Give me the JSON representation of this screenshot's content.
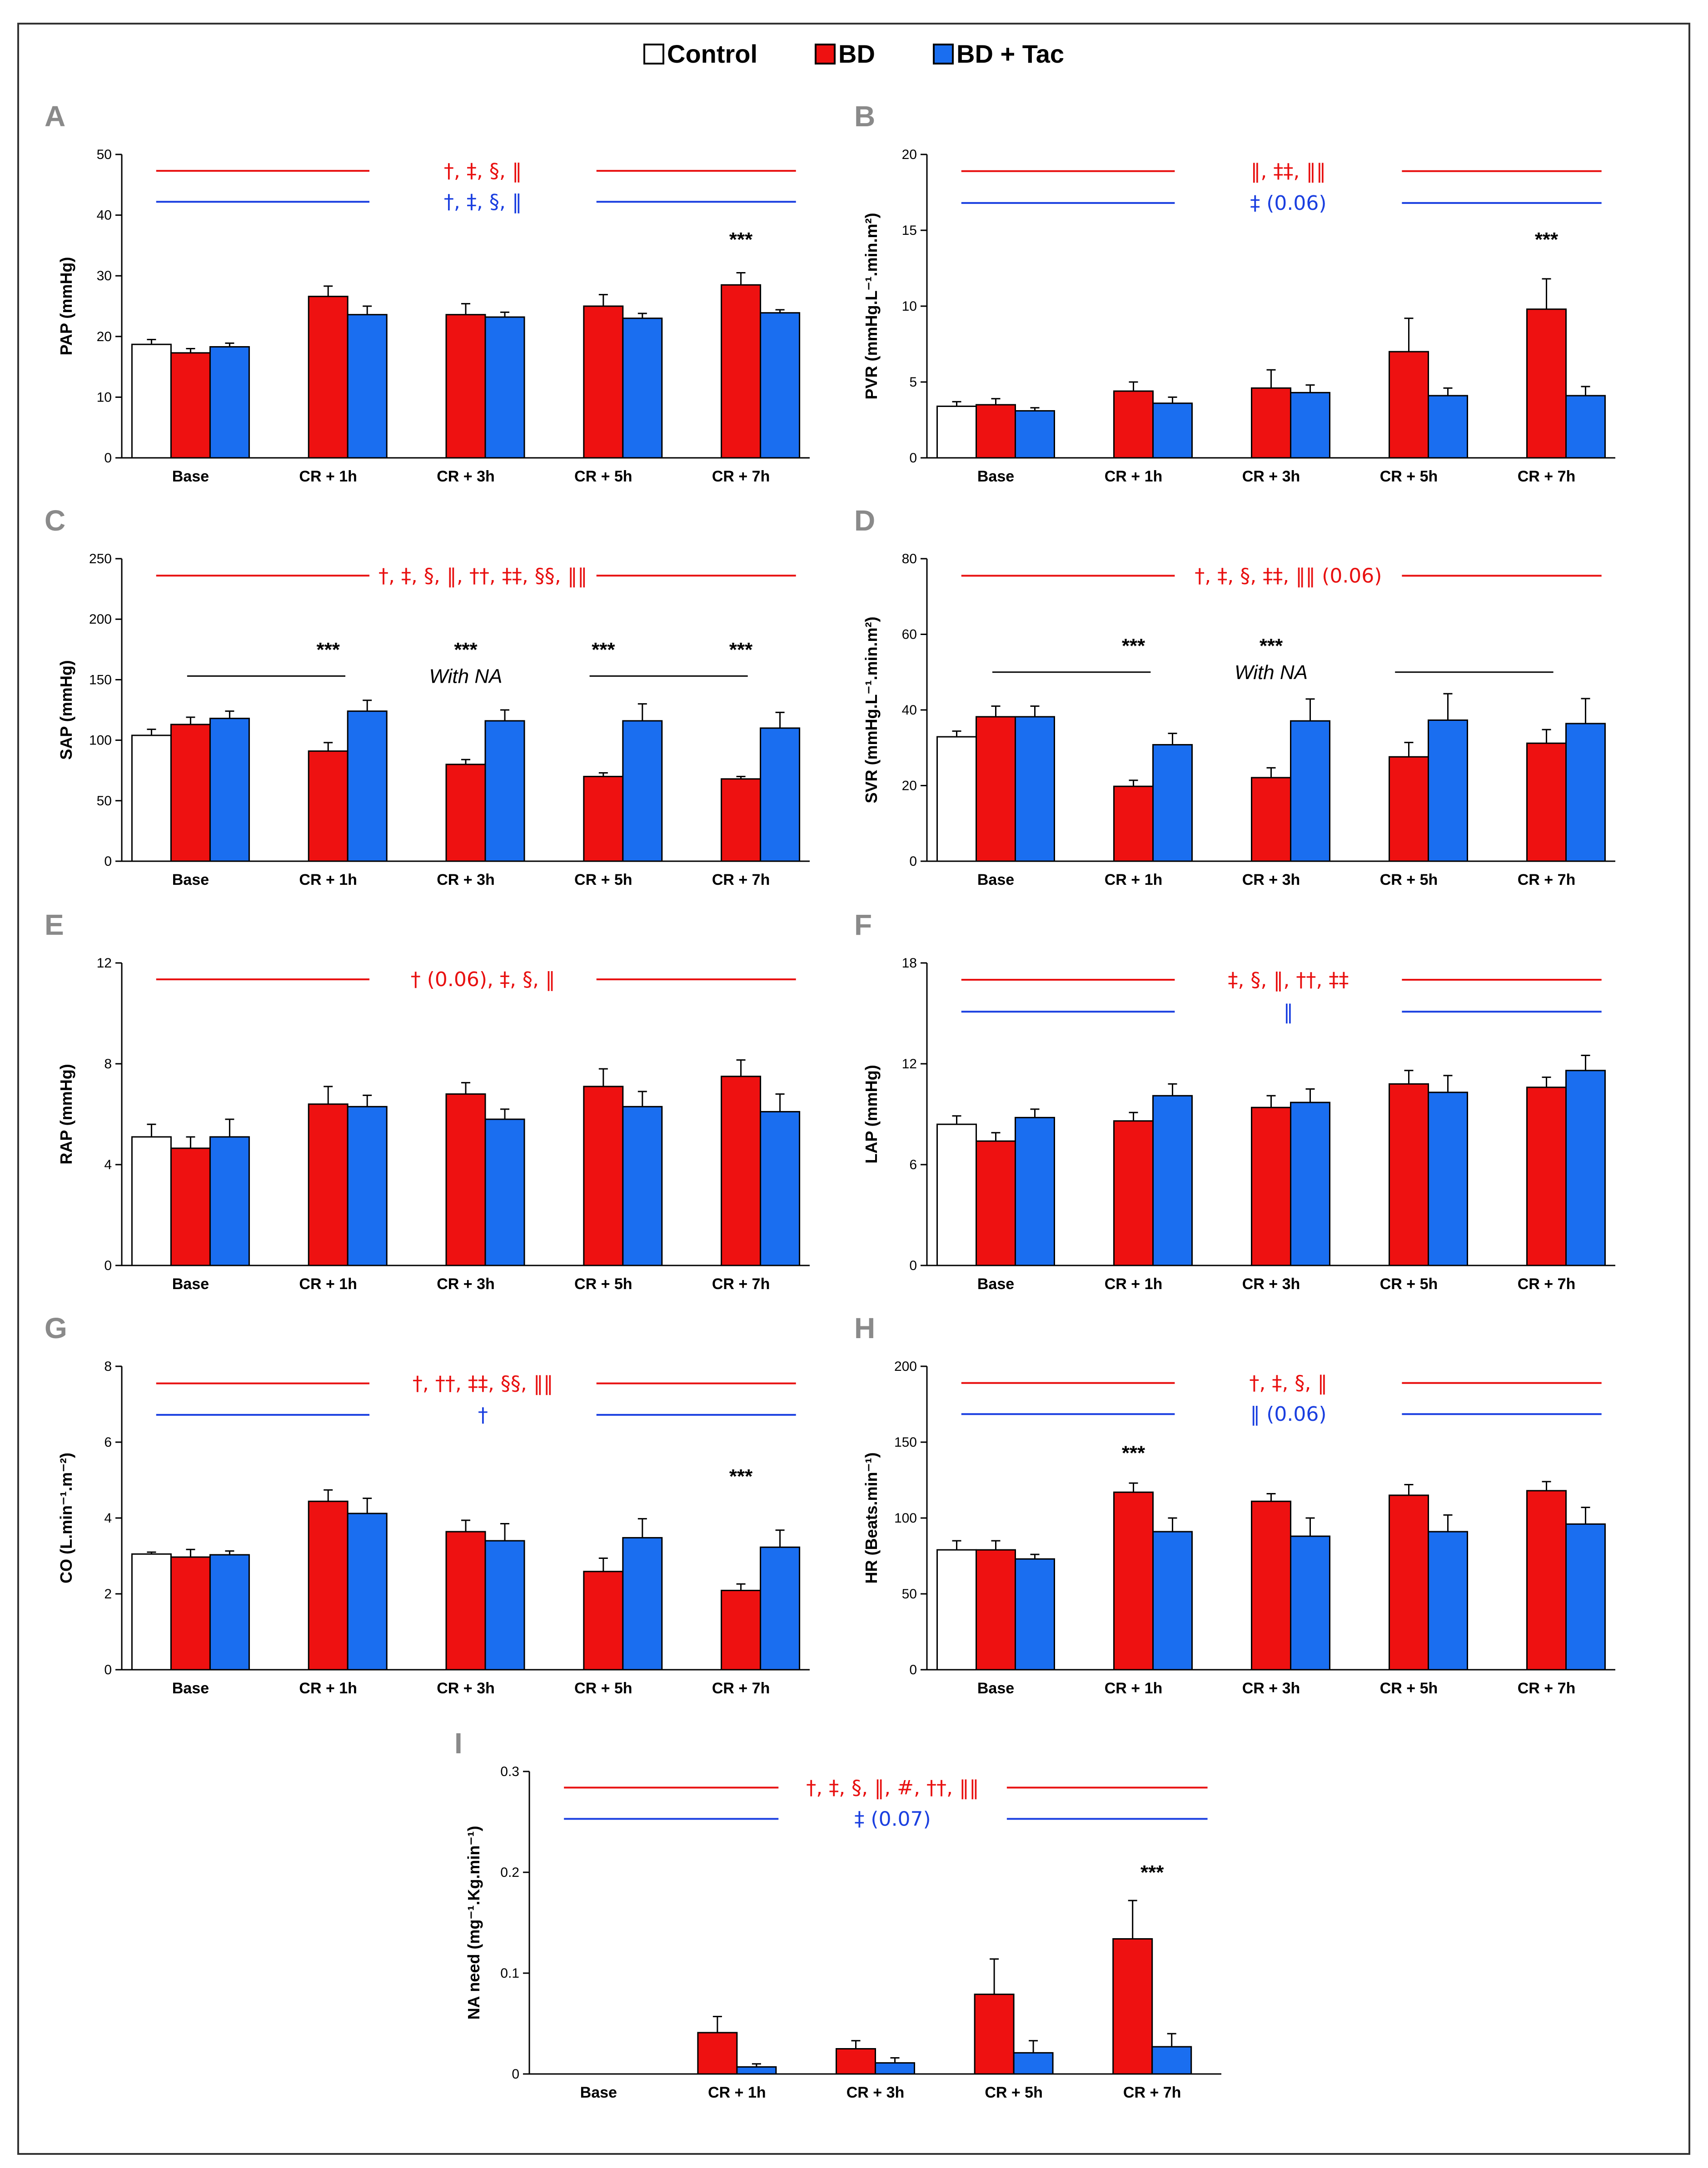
{
  "colors": {
    "control": "#ffffff",
    "bd": "#ee1111",
    "bdtac": "#1a6ef0",
    "sig_red": "#e81010",
    "sig_blue": "#1a3fe0"
  },
  "legend": [
    {
      "label": "Control",
      "key": "control"
    },
    {
      "label": "BD",
      "key": "bd"
    },
    {
      "label": "BD + Tac",
      "key": "bdtac"
    }
  ],
  "chart_data": [
    {
      "panel": "A",
      "type": "bar",
      "ylabel": "PAP (mmHg)",
      "ylim": [
        0,
        50
      ],
      "yticks": [
        0,
        10,
        20,
        30,
        40,
        50
      ],
      "categories": [
        "Base",
        "CR + 1h",
        "CR + 3h",
        "CR + 5h",
        "CR + 7h"
      ],
      "series": [
        {
          "name": "Control",
          "values": [
            18.7,
            null,
            null,
            null,
            null
          ],
          "errors": [
            0.8,
            null,
            null,
            null,
            null
          ]
        },
        {
          "name": "BD",
          "values": [
            17.3,
            26.6,
            23.6,
            25.0,
            28.5
          ],
          "errors": [
            0.7,
            1.7,
            1.8,
            1.9,
            2.0
          ]
        },
        {
          "name": "BD + Tac",
          "values": [
            18.3,
            23.6,
            23.2,
            23.0,
            23.9
          ],
          "errors": [
            0.6,
            1.4,
            0.8,
            0.8,
            0.5
          ]
        }
      ],
      "significance": [
        {
          "text": "†, ‡, §, ‖",
          "color": "red",
          "y": 47.3
        },
        {
          "text": "†, ‡, §, ‖",
          "color": "blue",
          "y": 42.2
        }
      ],
      "stars": [
        {
          "text": "***",
          "category": 4,
          "y": 36
        }
      ]
    },
    {
      "panel": "B",
      "type": "bar",
      "ylabel": "PVR  (mmHg.L⁻¹.min.m²)",
      "ylim": [
        0,
        20
      ],
      "yticks": [
        0,
        5,
        10,
        15,
        20
      ],
      "categories": [
        "Base",
        "CR + 1h",
        "CR + 3h",
        "CR + 5h",
        "CR + 7h"
      ],
      "series": [
        {
          "name": "Control",
          "values": [
            3.4,
            null,
            null,
            null,
            null
          ],
          "errors": [
            0.3,
            null,
            null,
            null,
            null
          ]
        },
        {
          "name": "BD",
          "values": [
            3.5,
            4.4,
            4.6,
            7.0,
            9.8
          ],
          "errors": [
            0.4,
            0.6,
            1.2,
            2.2,
            2.0
          ]
        },
        {
          "name": "BD + Tac",
          "values": [
            3.1,
            3.6,
            4.3,
            4.1,
            4.1
          ],
          "errors": [
            0.2,
            0.4,
            0.5,
            0.5,
            0.6
          ]
        }
      ],
      "significance": [
        {
          "text": "‖, ‡‡, ‖‖",
          "color": "red",
          "y": 18.9
        },
        {
          "text": "‡ (0.06)",
          "color": "blue",
          "y": 16.8
        }
      ],
      "stars": [
        {
          "text": "***",
          "category": 4,
          "y": 14.4
        }
      ]
    },
    {
      "panel": "C",
      "type": "bar",
      "ylabel": "SAP (mmHg)",
      "ylim": [
        0,
        250
      ],
      "yticks": [
        0,
        50,
        100,
        150,
        200,
        250
      ],
      "categories": [
        "Base",
        "CR + 1h",
        "CR + 3h",
        "CR + 5h",
        "CR + 7h"
      ],
      "series": [
        {
          "name": "Control",
          "values": [
            104,
            null,
            null,
            null,
            null
          ],
          "errors": [
            5,
            null,
            null,
            null,
            null
          ]
        },
        {
          "name": "BD",
          "values": [
            113,
            91,
            80,
            70,
            68
          ],
          "errors": [
            6,
            7,
            4,
            3,
            2
          ]
        },
        {
          "name": "BD + Tac",
          "values": [
            118,
            124,
            116,
            116,
            110
          ],
          "errors": [
            6,
            9,
            9,
            14,
            13
          ]
        }
      ],
      "significance": [
        {
          "text": "†, ‡, §, ‖, ††, ‡‡, §§, ‖‖",
          "color": "red",
          "y": 236
        }
      ],
      "stars": [
        {
          "text": "***",
          "category": 1,
          "y": 175
        },
        {
          "text": "***",
          "category": 2,
          "y": 175
        },
        {
          "text": "***",
          "category": 3,
          "y": 175
        },
        {
          "text": "***",
          "category": 4,
          "y": 175
        }
      ],
      "with_na": {
        "text": "With NA",
        "y": 153
      }
    },
    {
      "panel": "D",
      "type": "bar",
      "ylabel": "SVR  (mmHg.L⁻¹.min.m²)",
      "ylim": [
        0,
        80
      ],
      "yticks": [
        0,
        20,
        40,
        60,
        80
      ],
      "categories": [
        "Base",
        "CR + 1h",
        "CR + 3h",
        "CR + 5h",
        "CR + 7h"
      ],
      "series": [
        {
          "name": "Control",
          "values": [
            32.9,
            null,
            null,
            null,
            null
          ],
          "errors": [
            1.5,
            null,
            null,
            null,
            null
          ]
        },
        {
          "name": "BD",
          "values": [
            38.2,
            19.8,
            22.1,
            27.6,
            31.2
          ],
          "errors": [
            2.8,
            1.6,
            2.6,
            3.8,
            3.6
          ]
        },
        {
          "name": "BD + Tac",
          "values": [
            38.2,
            30.8,
            37.1,
            37.3,
            36.4
          ],
          "errors": [
            2.8,
            3.0,
            5.8,
            7.0,
            6.6
          ]
        }
      ],
      "significance": [
        {
          "text": "†, ‡, §, ‡‡, ‖‖ (0.06)",
          "color": "red",
          "y": 75.5
        }
      ],
      "stars": [
        {
          "text": "***",
          "category": 1,
          "y": 57
        },
        {
          "text": "***",
          "category": 2,
          "y": 57
        }
      ],
      "with_na": {
        "text": "With NA",
        "y": 50
      }
    },
    {
      "panel": "E",
      "type": "bar",
      "ylabel": "RAP (mmHg)",
      "ylim": [
        0,
        12
      ],
      "yticks": [
        0,
        4,
        8,
        12
      ],
      "categories": [
        "Base",
        "CR + 1h",
        "CR + 3h",
        "CR + 5h",
        "CR + 7h"
      ],
      "series": [
        {
          "name": "Control",
          "values": [
            5.1,
            null,
            null,
            null,
            null
          ],
          "errors": [
            0.5,
            null,
            null,
            null,
            null
          ]
        },
        {
          "name": "BD",
          "values": [
            4.65,
            6.4,
            6.8,
            7.1,
            7.5
          ],
          "errors": [
            0.45,
            0.7,
            0.45,
            0.7,
            0.65
          ]
        },
        {
          "name": "BD + Tac",
          "values": [
            5.1,
            6.3,
            5.8,
            6.3,
            6.1
          ],
          "errors": [
            0.7,
            0.45,
            0.4,
            0.6,
            0.7
          ]
        }
      ],
      "significance": [
        {
          "text": "† (0.06), ‡, §, ‖",
          "color": "red",
          "y": 11.35
        }
      ],
      "stars": []
    },
    {
      "panel": "F",
      "type": "bar",
      "ylabel": "LAP (mmHg)",
      "ylim": [
        0,
        18
      ],
      "yticks": [
        0,
        6,
        12,
        18
      ],
      "categories": [
        "Base",
        "CR + 1h",
        "CR + 3h",
        "CR + 5h",
        "CR + 7h"
      ],
      "series": [
        {
          "name": "Control",
          "values": [
            8.4,
            null,
            null,
            null,
            null
          ],
          "errors": [
            0.5,
            null,
            null,
            null,
            null
          ]
        },
        {
          "name": "BD",
          "values": [
            7.4,
            8.6,
            9.4,
            10.8,
            10.6
          ],
          "errors": [
            0.5,
            0.5,
            0.7,
            0.8,
            0.6
          ]
        },
        {
          "name": "BD + Tac",
          "values": [
            8.8,
            10.1,
            9.7,
            10.3,
            11.6
          ],
          "errors": [
            0.5,
            0.7,
            0.8,
            1.0,
            0.9
          ]
        }
      ],
      "significance": [
        {
          "text": "‡, §, ‖, ††, ‡‡",
          "color": "red",
          "y": 17.0
        },
        {
          "text": "‖",
          "color": "blue",
          "y": 15.1
        }
      ],
      "stars": []
    },
    {
      "panel": "G",
      "type": "bar",
      "ylabel": "CO (L.min⁻¹.m⁻²)",
      "ylim": [
        0,
        8
      ],
      "yticks": [
        0,
        2,
        4,
        6,
        8
      ],
      "categories": [
        "Base",
        "CR + 1h",
        "CR + 3h",
        "CR + 5h",
        "CR + 7h"
      ],
      "series": [
        {
          "name": "Control",
          "values": [
            3.05,
            null,
            null,
            null,
            null
          ],
          "errors": [
            0.05,
            null,
            null,
            null,
            null
          ]
        },
        {
          "name": "BD",
          "values": [
            2.97,
            4.44,
            3.64,
            2.59,
            2.09
          ],
          "errors": [
            0.2,
            0.3,
            0.3,
            0.35,
            0.17
          ]
        },
        {
          "name": "BD + Tac",
          "values": [
            3.03,
            4.12,
            3.4,
            3.48,
            3.23
          ],
          "errors": [
            0.1,
            0.4,
            0.45,
            0.5,
            0.45
          ]
        }
      ],
      "significance": [
        {
          "text": "†, ††, ‡‡, §§, ‖‖",
          "color": "red",
          "y": 7.55
        },
        {
          "text": "†",
          "color": "blue",
          "y": 6.72
        }
      ],
      "stars": [
        {
          "text": "***",
          "category": 4,
          "y": 5.1
        }
      ]
    },
    {
      "panel": "H",
      "type": "bar",
      "ylabel": "HR (Beats.min⁻¹)",
      "ylim": [
        0,
        200
      ],
      "yticks": [
        0,
        50,
        100,
        150,
        200
      ],
      "categories": [
        "Base",
        "CR + 1h",
        "CR + 3h",
        "CR + 5h",
        "CR + 7h"
      ],
      "series": [
        {
          "name": "Control",
          "values": [
            79,
            null,
            null,
            null,
            null
          ],
          "errors": [
            6,
            null,
            null,
            null,
            null
          ]
        },
        {
          "name": "BD",
          "values": [
            79,
            117,
            111,
            115,
            118
          ],
          "errors": [
            6,
            6,
            5,
            7,
            6
          ]
        },
        {
          "name": "BD + Tac",
          "values": [
            73,
            91,
            88,
            91,
            96
          ],
          "errors": [
            3,
            9,
            12,
            11,
            11
          ]
        }
      ],
      "significance": [
        {
          "text": "†, ‡, §, ‖",
          "color": "red",
          "y": 189
        },
        {
          "text": "‖ (0.06)",
          "color": "blue",
          "y": 168.5
        }
      ],
      "stars": [
        {
          "text": "***",
          "category": 1,
          "y": 143
        }
      ]
    },
    {
      "panel": "I",
      "type": "bar",
      "ylabel": "NA need (mg⁻¹.Kg.min⁻¹)",
      "ylim": [
        0,
        0.3
      ],
      "yticks": [
        0,
        0.1,
        0.2,
        0.3
      ],
      "categories": [
        "Base",
        "CR + 1h",
        "CR + 3h",
        "CR + 5h",
        "CR + 7h"
      ],
      "series": [
        {
          "name": "BD",
          "values": [
            null,
            0.041,
            0.025,
            0.079,
            0.134
          ],
          "errors": [
            null,
            0.016,
            0.008,
            0.035,
            0.038
          ]
        },
        {
          "name": "BD + Tac",
          "values": [
            null,
            0.007,
            0.011,
            0.021,
            0.027
          ],
          "errors": [
            null,
            0.003,
            0.005,
            0.012,
            0.013
          ]
        }
      ],
      "significance": [
        {
          "text": "†, ‡, §, ‖, #, ††, ‖‖",
          "color": "red",
          "y": 0.284
        },
        {
          "text": "‡ (0.07)",
          "color": "blue",
          "y": 0.253
        }
      ],
      "stars": [
        {
          "text": "***",
          "category": 4,
          "y": 0.2
        }
      ]
    }
  ]
}
